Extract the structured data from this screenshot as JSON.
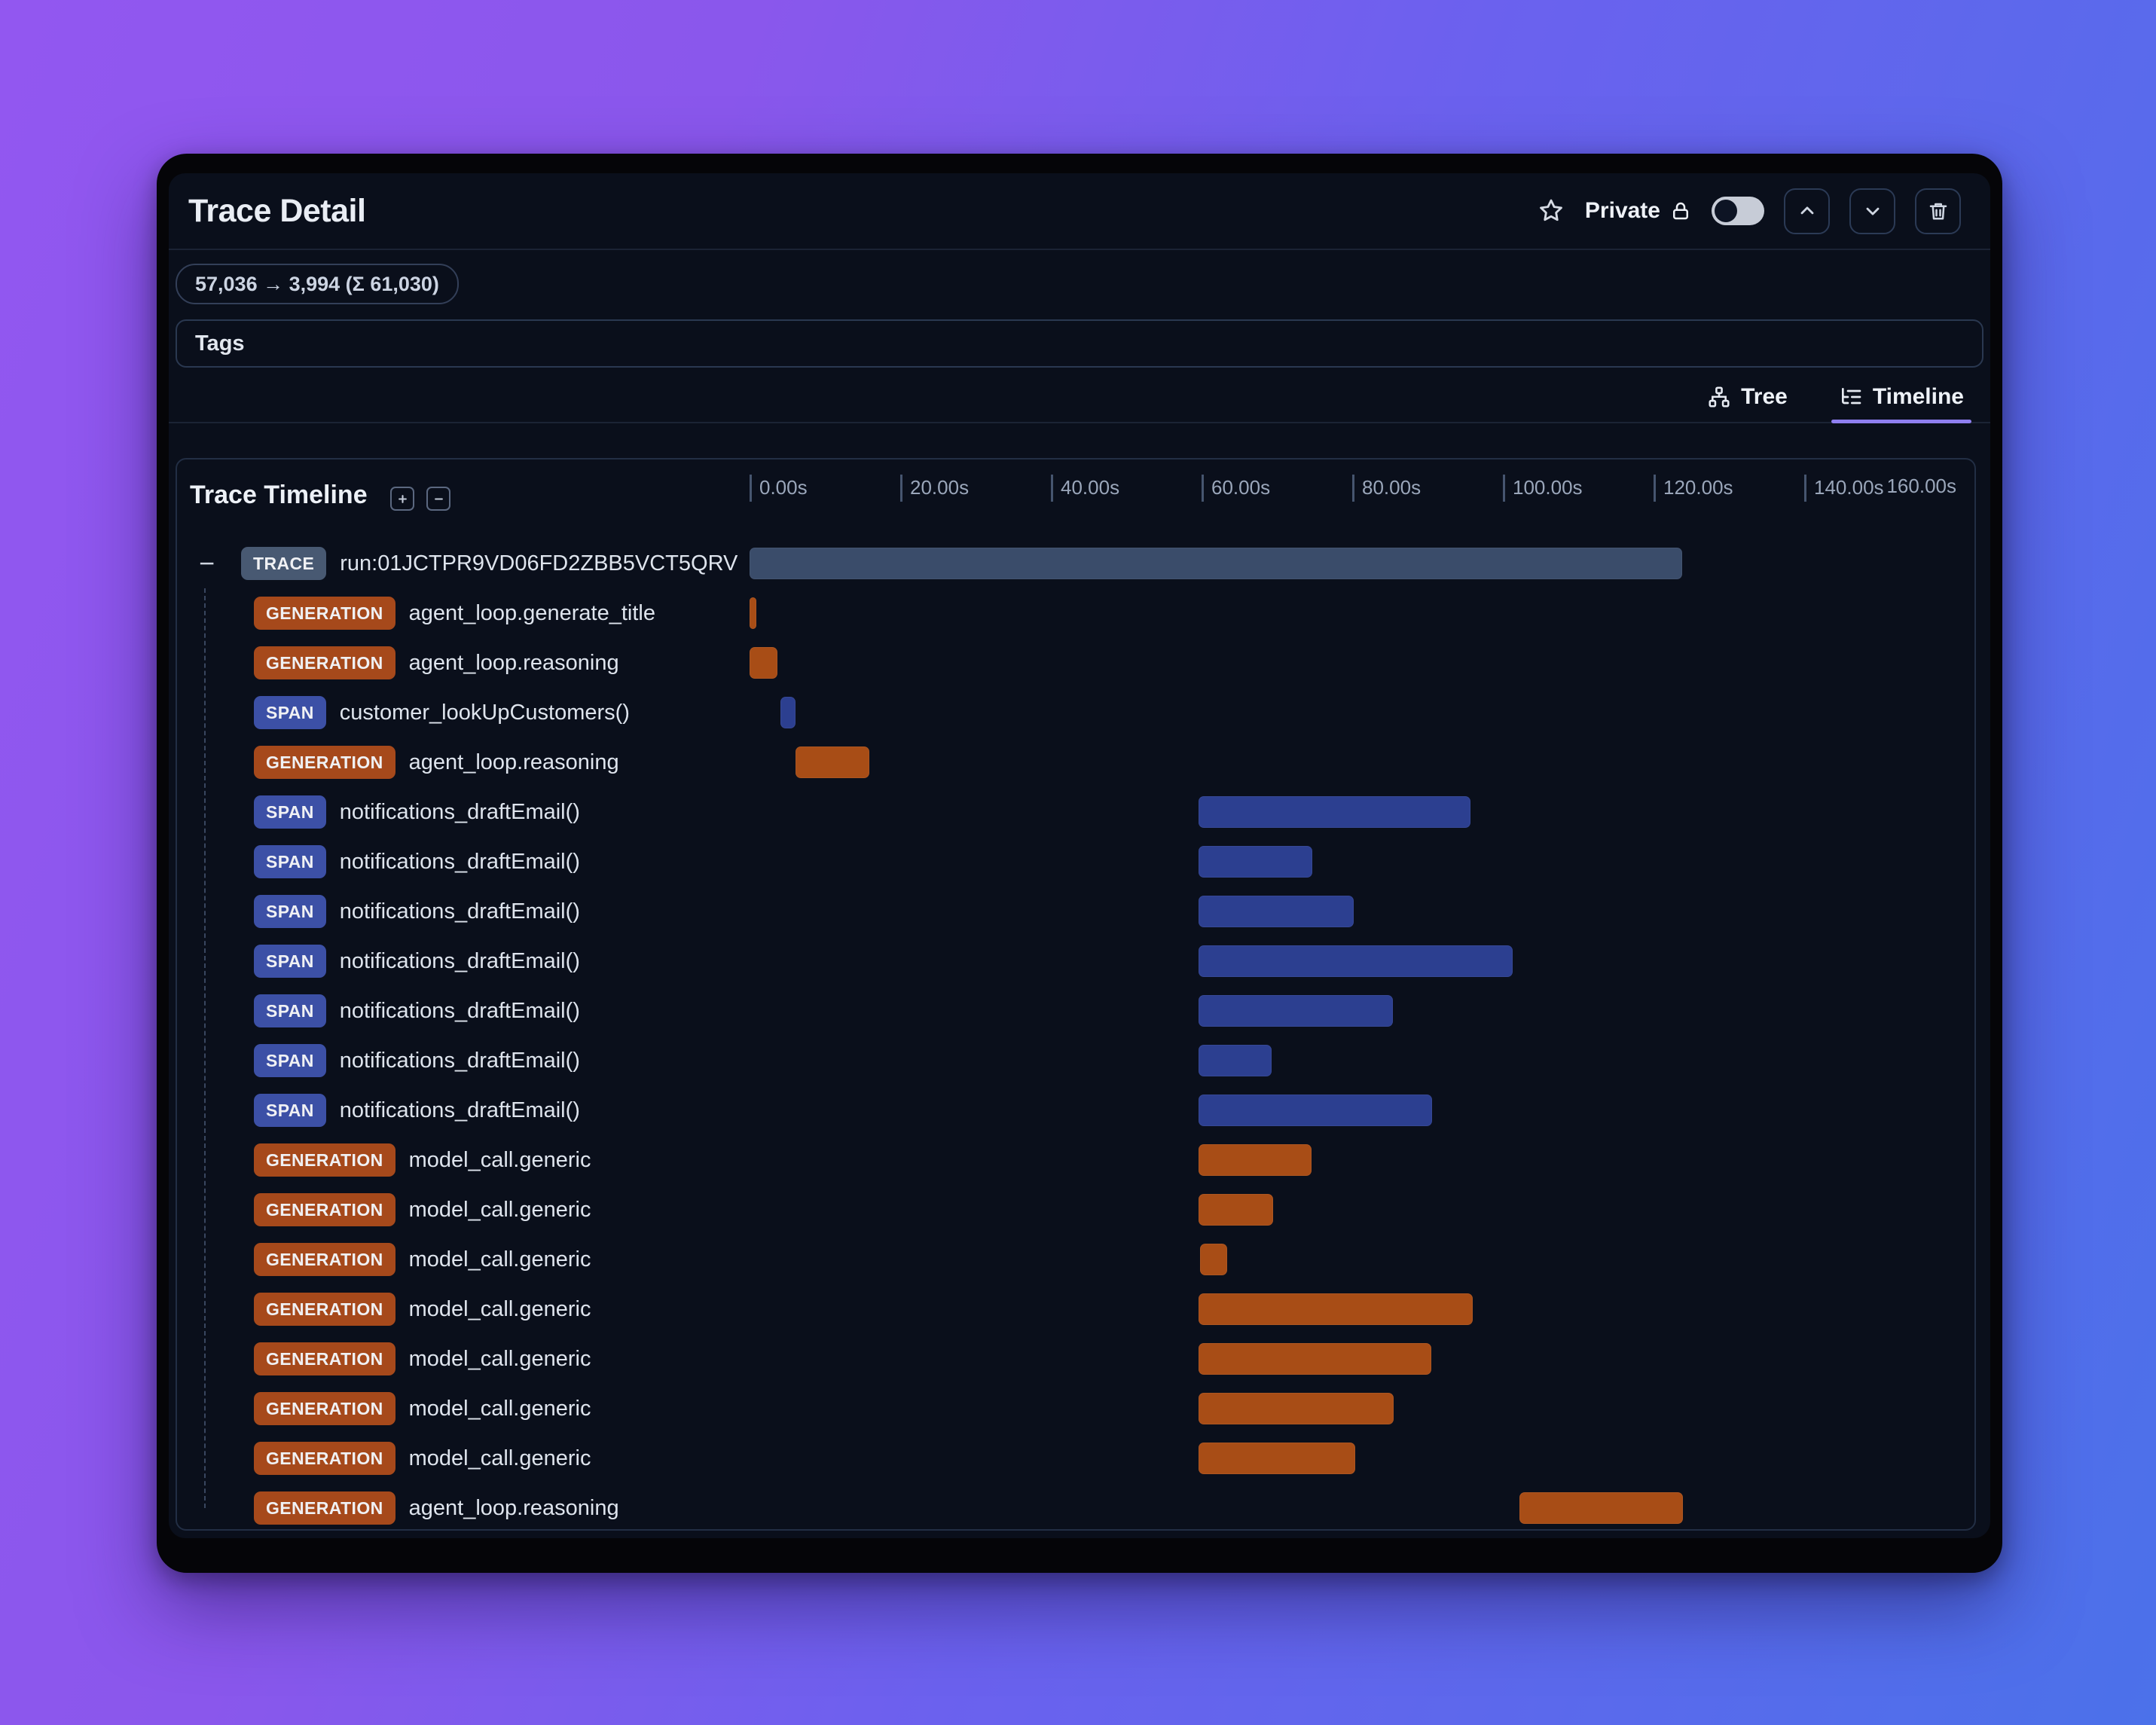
{
  "window": {
    "title": "Trace Detail"
  },
  "header": {
    "favorite_icon": "star-icon",
    "privacy_label": "Private",
    "privacy_icon": "lock-icon",
    "privacy_toggle_state": "off",
    "nav_up_icon": "chevron-up-icon",
    "nav_down_icon": "chevron-down-icon",
    "delete_icon": "trash-icon"
  },
  "usage_badge": {
    "text": "57,036 → 3,994 (Σ 61,030)"
  },
  "tags": {
    "label": "Tags"
  },
  "view_tabs": [
    {
      "label": "Tree",
      "icon": "tree-icon",
      "active": false
    },
    {
      "label": "Timeline",
      "icon": "list-tree-icon",
      "active": true
    }
  ],
  "timeline": {
    "title": "Trace Timeline",
    "expand_icon": "plus-square-icon",
    "collapse_icon": "minus-square-icon",
    "axis": {
      "tick_labels": [
        "0.00s",
        "20.00s",
        "40.00s",
        "60.00s",
        "80.00s",
        "100.00s",
        "120.00s",
        "140.00s",
        "160.00s"
      ],
      "seconds_per_tick": 20,
      "max_seconds": 160
    },
    "rows": [
      {
        "type": "TRACE",
        "label": "run:01JCTPR9VD06FD2ZBB5VCT5QRV",
        "start_s": 0,
        "end_s": 123.8,
        "level": 0,
        "collapsed": false
      },
      {
        "type": "GENERATION",
        "label": "agent_loop.generate_title",
        "start_s": 0,
        "end_s": 0.9,
        "level": 1
      },
      {
        "type": "GENERATION",
        "label": "agent_loop.reasoning",
        "start_s": 0,
        "end_s": 3.7,
        "level": 1
      },
      {
        "type": "SPAN",
        "label": "customer_lookUpCustomers()",
        "start_s": 4.1,
        "end_s": 6.1,
        "level": 1
      },
      {
        "type": "GENERATION",
        "label": "agent_loop.reasoning",
        "start_s": 6.1,
        "end_s": 15.9,
        "level": 1
      },
      {
        "type": "SPAN",
        "label": "notifications_draftEmail()",
        "start_s": 59.6,
        "end_s": 95.7,
        "level": 1
      },
      {
        "type": "SPAN",
        "label": "notifications_draftEmail()",
        "start_s": 59.6,
        "end_s": 74.7,
        "level": 1
      },
      {
        "type": "SPAN",
        "label": "notifications_draftEmail()",
        "start_s": 59.6,
        "end_s": 80.2,
        "level": 1
      },
      {
        "type": "SPAN",
        "label": "notifications_draftEmail()",
        "start_s": 59.6,
        "end_s": 101.3,
        "level": 1
      },
      {
        "type": "SPAN",
        "label": "notifications_draftEmail()",
        "start_s": 59.6,
        "end_s": 85.4,
        "level": 1
      },
      {
        "type": "SPAN",
        "label": "notifications_draftEmail()",
        "start_s": 59.6,
        "end_s": 69.3,
        "level": 1
      },
      {
        "type": "SPAN",
        "label": "notifications_draftEmail()",
        "start_s": 59.6,
        "end_s": 90.6,
        "level": 1
      },
      {
        "type": "GENERATION",
        "label": "model_call.generic",
        "start_s": 59.6,
        "end_s": 74.6,
        "level": 1
      },
      {
        "type": "GENERATION",
        "label": "model_call.generic",
        "start_s": 59.6,
        "end_s": 69.5,
        "level": 1
      },
      {
        "type": "GENERATION",
        "label": "model_call.generic",
        "start_s": 59.8,
        "end_s": 63.4,
        "level": 1
      },
      {
        "type": "GENERATION",
        "label": "model_call.generic",
        "start_s": 59.6,
        "end_s": 96.0,
        "level": 1
      },
      {
        "type": "GENERATION",
        "label": "model_call.generic",
        "start_s": 59.6,
        "end_s": 90.5,
        "level": 1
      },
      {
        "type": "GENERATION",
        "label": "model_call.generic",
        "start_s": 59.6,
        "end_s": 85.5,
        "level": 1
      },
      {
        "type": "GENERATION",
        "label": "model_call.generic",
        "start_s": 59.6,
        "end_s": 80.4,
        "level": 1
      },
      {
        "type": "GENERATION",
        "label": "agent_loop.reasoning",
        "start_s": 102.2,
        "end_s": 123.9,
        "level": 1
      }
    ]
  },
  "colors": {
    "trace_bar": "#3a4c6a",
    "generation_bar": "#a84d16",
    "span_bar": "#2c3f90",
    "trace_badge": "#485972",
    "generation_badge": "#a6491b",
    "span_badge": "#3c50a6",
    "tab_active_underline": "#8f7ff0",
    "background_gradient": [
      "#9257f0",
      "#4b71ea"
    ]
  }
}
